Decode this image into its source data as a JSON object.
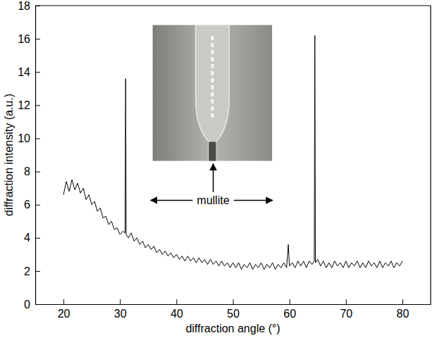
{
  "chart_data": {
    "type": "line",
    "x_label": "diffraction angle (°)",
    "y_label": "diffraction intensity (a.u.)",
    "annotation": "mullite",
    "color": "#000000",
    "xlim": [
      15,
      85
    ],
    "xticks": [
      20,
      30,
      40,
      50,
      60,
      70,
      80
    ],
    "ylim": [
      0,
      18
    ],
    "yticks": [
      0,
      2,
      4,
      6,
      8,
      10,
      12,
      14,
      16,
      18
    ],
    "x": [
      20,
      20.5,
      21,
      21.5,
      22,
      22.5,
      23,
      23.5,
      24,
      24.5,
      25,
      25.5,
      26,
      26.5,
      27,
      27.5,
      28,
      28.5,
      29,
      29.5,
      30,
      30.5,
      30.9,
      31,
      31.1,
      31.5,
      32,
      32.5,
      33,
      33.5,
      34,
      34.5,
      35,
      35.5,
      36,
      36.5,
      37,
      37.5,
      38,
      38.5,
      39,
      39.5,
      40,
      40.5,
      41,
      41.5,
      42,
      42.5,
      43,
      43.5,
      44,
      44.5,
      45,
      45.5,
      46,
      46.5,
      47,
      47.5,
      48,
      48.5,
      49,
      49.5,
      50,
      50.5,
      51,
      51.5,
      52,
      52.5,
      53,
      53.5,
      54,
      54.5,
      55,
      55.5,
      56,
      56.5,
      57,
      57.5,
      58,
      58.5,
      59,
      59.5,
      59.8,
      60,
      60.5,
      61,
      61.5,
      62,
      62.5,
      63,
      63.5,
      64,
      64.4,
      64.5,
      64.6,
      65,
      65.5,
      66,
      66.5,
      67,
      67.5,
      68,
      68.5,
      69,
      69.5,
      70,
      70.5,
      71,
      71.5,
      72,
      72.5,
      73,
      73.5,
      74,
      74.5,
      75,
      75.5,
      76,
      76.5,
      77,
      77.5,
      78,
      78.5,
      79,
      79.5,
      80
    ],
    "values": [
      6.6,
      7.4,
      6.8,
      7.5,
      6.9,
      7.3,
      6.7,
      7.0,
      6.3,
      6.6,
      6.0,
      6.2,
      5.6,
      5.8,
      5.2,
      5.3,
      4.8,
      5.0,
      4.5,
      4.6,
      4.2,
      4.4,
      4.3,
      13.6,
      4.2,
      4.0,
      4.3,
      3.8,
      4.0,
      3.6,
      3.8,
      3.4,
      3.6,
      3.3,
      3.5,
      3.1,
      3.3,
      3.0,
      3.2,
      2.9,
      3.1,
      2.8,
      3.0,
      2.7,
      2.9,
      2.6,
      2.9,
      2.6,
      2.8,
      2.5,
      2.8,
      2.5,
      2.7,
      2.4,
      2.7,
      2.4,
      2.6,
      2.3,
      2.6,
      2.3,
      2.5,
      2.2,
      2.5,
      2.2,
      2.5,
      2.1,
      2.4,
      2.2,
      2.5,
      2.1,
      2.4,
      2.2,
      2.5,
      2.1,
      2.4,
      2.2,
      2.5,
      2.1,
      2.4,
      2.2,
      2.5,
      2.2,
      3.6,
      2.3,
      2.5,
      2.2,
      2.6,
      2.3,
      2.6,
      2.2,
      2.6,
      2.4,
      2.6,
      16.2,
      2.5,
      2.7,
      2.3,
      2.6,
      2.2,
      2.5,
      2.2,
      2.6,
      2.3,
      2.5,
      2.2,
      2.6,
      2.2,
      2.5,
      2.3,
      2.6,
      2.2,
      2.5,
      2.2,
      2.6,
      2.3,
      2.5,
      2.2,
      2.6,
      2.2,
      2.5,
      2.3,
      2.6,
      2.2,
      2.5,
      2.3,
      2.6
    ]
  }
}
